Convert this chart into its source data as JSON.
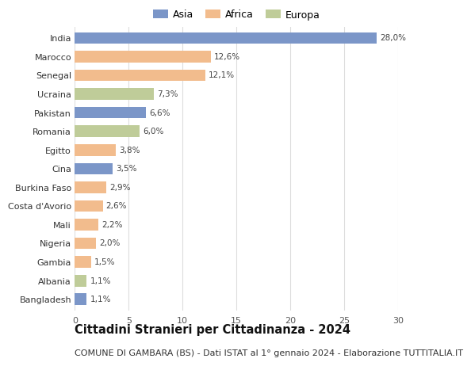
{
  "countries": [
    "India",
    "Marocco",
    "Senegal",
    "Ucraina",
    "Pakistan",
    "Romania",
    "Egitto",
    "Cina",
    "Burkina Faso",
    "Costa d'Avorio",
    "Mali",
    "Nigeria",
    "Gambia",
    "Albania",
    "Bangladesh"
  ],
  "values": [
    28.0,
    12.6,
    12.1,
    7.3,
    6.6,
    6.0,
    3.8,
    3.5,
    2.9,
    2.6,
    2.2,
    2.0,
    1.5,
    1.1,
    1.1
  ],
  "labels": [
    "28,0%",
    "12,6%",
    "12,1%",
    "7,3%",
    "6,6%",
    "6,0%",
    "3,8%",
    "3,5%",
    "2,9%",
    "2,6%",
    "2,2%",
    "2,0%",
    "1,5%",
    "1,1%",
    "1,1%"
  ],
  "continents": [
    "Asia",
    "Africa",
    "Africa",
    "Europa",
    "Asia",
    "Europa",
    "Africa",
    "Asia",
    "Africa",
    "Africa",
    "Africa",
    "Africa",
    "Africa",
    "Europa",
    "Asia"
  ],
  "colors": {
    "Asia": "#7b96c8",
    "Africa": "#f2bc8d",
    "Europa": "#bfcc99"
  },
  "legend_labels": [
    "Asia",
    "Africa",
    "Europa"
  ],
  "xlim": [
    0,
    30
  ],
  "xticks": [
    0,
    5,
    10,
    15,
    20,
    25,
    30
  ],
  "title": "Cittadini Stranieri per Cittadinanza - 2024",
  "subtitle": "COMUNE DI GAMBARA (BS) - Dati ISTAT al 1° gennaio 2024 - Elaborazione TUTTITALIA.IT",
  "title_fontsize": 10.5,
  "subtitle_fontsize": 8.0,
  "bar_height": 0.62,
  "background_color": "#ffffff",
  "grid_color": "#dddddd"
}
